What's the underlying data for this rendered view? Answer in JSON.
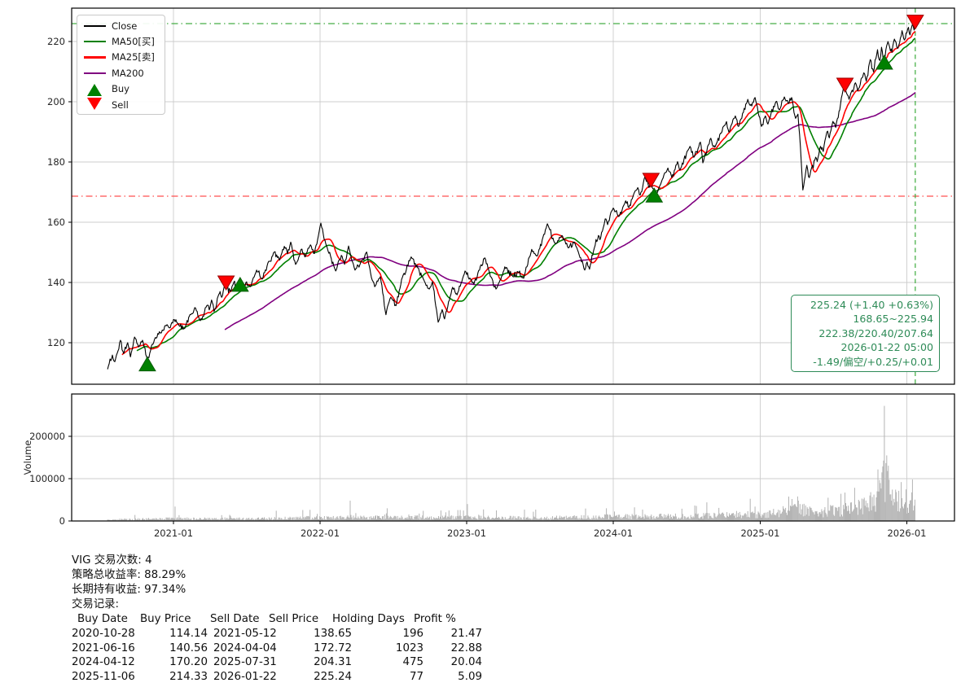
{
  "colors": {
    "close": "#000000",
    "ma50": "#008000",
    "ma25": "#ff0000",
    "ma200": "#800080",
    "buy": "#008000",
    "buy_edge": "#0a5d0a",
    "sell": "#ff0000",
    "sell_edge": "#990000",
    "hline_high": "#46ad46",
    "hline_low": "#ff5050",
    "vline": "#3cab3c",
    "grid": "#cccccc",
    "frame": "#000000",
    "volume_bar": "#b4b4b4",
    "infobox": "#2e8b57",
    "tick_text": "#262626"
  },
  "legend": {
    "items": [
      {
        "label": "Close",
        "swatch": "line",
        "color_key": "close"
      },
      {
        "label": "MA50[买]",
        "swatch": "line",
        "color_key": "ma50"
      },
      {
        "label": "MA25[卖]",
        "swatch": "line",
        "color_key": "ma25"
      },
      {
        "label": "MA200",
        "swatch": "line",
        "color_key": "ma200"
      },
      {
        "label": "Buy",
        "swatch": "triangle-up",
        "color_key": "buy"
      },
      {
        "label": "Sell",
        "swatch": "triangle-down",
        "color_key": "sell"
      }
    ]
  },
  "info_box": {
    "lines": [
      "225.24 (+1.40 +0.63%)",
      "168.65~225.94",
      "222.38/220.40/207.64",
      "2026-01-22 05:00",
      "-1.49/偏空/+0.25/+0.01"
    ]
  },
  "stats": {
    "line1": "VIG 交易次数: 4",
    "line2": "策略总收益率: 88.29%",
    "line3": "长期持有收益: 97.34%",
    "line4": "交易记录:",
    "table": {
      "headers": [
        "Buy Date",
        "Buy Price",
        "Sell Date",
        "Sell Price",
        "Holding Days",
        "Profit %"
      ],
      "rows": [
        [
          "2020-10-28",
          "114.14",
          "2021-05-12",
          "138.65",
          "196",
          "21.47"
        ],
        [
          "2021-06-16",
          "140.56",
          "2024-04-04",
          "172.72",
          "1023",
          "22.88"
        ],
        [
          "2024-04-12",
          "170.20",
          "2025-07-31",
          "204.31",
          "475",
          "20.04"
        ],
        [
          "2025-11-06",
          "214.33",
          "2026-01-22",
          "225.24",
          "77",
          "5.09"
        ]
      ]
    }
  },
  "chart_data": {
    "type": "line",
    "title": "",
    "symbol": "VIG",
    "price_ticks": [
      120,
      140,
      160,
      180,
      200,
      220
    ],
    "price_ylim": [
      106,
      231.5
    ],
    "x_ticks": [
      [
        "2021-01-01",
        "2021-01"
      ],
      [
        "2022-01-01",
        "2022-01"
      ],
      [
        "2023-01-01",
        "2023-01"
      ],
      [
        "2024-01-01",
        "2024-01"
      ],
      [
        "2025-01-01",
        "2025-01"
      ],
      [
        "2026-01-01",
        "2026-01"
      ]
    ],
    "volume_label": "Volume",
    "volume_ticks": [
      [
        0,
        "0"
      ],
      [
        100000,
        "100000"
      ],
      [
        200000,
        "200000"
      ]
    ],
    "volume_ylim": [
      0,
      300000
    ],
    "hlines": [
      {
        "value": 225.94,
        "color_key": "hline_high",
        "dash": "8 4 1.5 4"
      },
      {
        "value": 168.65,
        "color_key": "hline_low",
        "dash": "8 4 1.5 4"
      }
    ],
    "vlines": [
      {
        "date": "2026-01-22",
        "color_key": "vline",
        "dash": "5.5 4"
      }
    ],
    "ma_lines": [
      {
        "name": "MA200",
        "window_days": 292,
        "color_key": "ma200"
      },
      {
        "name": "MA50",
        "window_days": 72,
        "color_key": "ma50"
      },
      {
        "name": "MA25",
        "window_days": 36,
        "color_key": "ma25"
      }
    ],
    "markers": [
      {
        "type": "buy",
        "date": "2020-10-28",
        "price": 114.14
      },
      {
        "type": "sell",
        "date": "2021-05-12",
        "price": 138.65
      },
      {
        "type": "buy",
        "date": "2021-06-16",
        "price": 140.56
      },
      {
        "type": "sell",
        "date": "2024-04-04",
        "price": 172.72
      },
      {
        "type": "buy",
        "date": "2024-04-12",
        "price": 170.2
      },
      {
        "type": "sell",
        "date": "2025-07-31",
        "price": 204.31
      },
      {
        "type": "buy",
        "date": "2025-11-06",
        "price": 214.33
      },
      {
        "type": "sell",
        "date": "2026-01-22",
        "price": 225.24
      }
    ],
    "close": [
      [
        "2020-07-21",
        111.2
      ],
      [
        "2020-08-02",
        115.9
      ],
      [
        "2020-08-08",
        113.7
      ],
      [
        "2020-08-22",
        120.8
      ],
      [
        "2020-08-30",
        116.4
      ],
      [
        "2020-09-09",
        120.0
      ],
      [
        "2020-09-16",
        115.3
      ],
      [
        "2020-09-26",
        121.9
      ],
      [
        "2020-10-06",
        118.6
      ],
      [
        "2020-10-16",
        120.8
      ],
      [
        "2020-10-28",
        114.1
      ],
      [
        "2020-11-09",
        119.5
      ],
      [
        "2020-11-19",
        121.5
      ],
      [
        "2020-11-28",
        123.5
      ],
      [
        "2020-12-06",
        124.1
      ],
      [
        "2020-12-16",
        126.0
      ],
      [
        "2020-12-24",
        125.0
      ],
      [
        "2021-01-01",
        127.7
      ],
      [
        "2021-01-13",
        126.2
      ],
      [
        "2021-01-29",
        124.7
      ],
      [
        "2021-02-11",
        129.3
      ],
      [
        "2021-02-25",
        131.5
      ],
      [
        "2021-03-05",
        128.4
      ],
      [
        "2021-03-13",
        127.7
      ],
      [
        "2021-03-25",
        132.3
      ],
      [
        "2021-03-31",
        130.9
      ],
      [
        "2021-04-06",
        134.2
      ],
      [
        "2021-04-12",
        130.4
      ],
      [
        "2021-04-27",
        137.0
      ],
      [
        "2021-05-03",
        135.6
      ],
      [
        "2021-05-11",
        140.9
      ],
      [
        "2021-05-12",
        138.65
      ],
      [
        "2021-05-23",
        137.0
      ],
      [
        "2021-05-31",
        140.0
      ],
      [
        "2021-06-06",
        138.6
      ],
      [
        "2021-06-16",
        140.56
      ],
      [
        "2021-06-22",
        137.6
      ],
      [
        "2021-06-30",
        139.9
      ],
      [
        "2021-07-11",
        138.6
      ],
      [
        "2021-07-27",
        144.1
      ],
      [
        "2021-08-10",
        141.1
      ],
      [
        "2021-08-26",
        147.0
      ],
      [
        "2021-09-09",
        150.1
      ],
      [
        "2021-09-22",
        147.4
      ],
      [
        "2021-10-04",
        152.0
      ],
      [
        "2021-10-12",
        149.5
      ],
      [
        "2021-10-20",
        153.4
      ],
      [
        "2021-11-01",
        146.0
      ],
      [
        "2021-11-15",
        151.0
      ],
      [
        "2021-11-24",
        148.5
      ],
      [
        "2021-12-08",
        152.5
      ],
      [
        "2021-12-18",
        149.6
      ],
      [
        "2022-01-03",
        159.7
      ],
      [
        "2022-01-15",
        153.0
      ],
      [
        "2022-02-09",
        143.8
      ],
      [
        "2022-02-23",
        149.0
      ],
      [
        "2022-03-03",
        146.0
      ],
      [
        "2022-03-13",
        152.1
      ],
      [
        "2022-03-29",
        144.1
      ],
      [
        "2022-04-12",
        146.5
      ],
      [
        "2022-04-27",
        150.1
      ],
      [
        "2022-05-07",
        143.0
      ],
      [
        "2022-05-17",
        138.6
      ],
      [
        "2022-05-31",
        141.9
      ],
      [
        "2022-06-14",
        129.3
      ],
      [
        "2022-06-26",
        135.1
      ],
      [
        "2022-07-09",
        132.3
      ],
      [
        "2022-07-23",
        141.0
      ],
      [
        "2022-08-16",
        148.5
      ],
      [
        "2022-09-16",
        141.0
      ],
      [
        "2022-09-30",
        137.8
      ],
      [
        "2022-10-08",
        140.3
      ],
      [
        "2022-10-22",
        126.8
      ],
      [
        "2022-11-01",
        131.0
      ],
      [
        "2022-11-07",
        127.9
      ],
      [
        "2022-11-27",
        138.4
      ],
      [
        "2022-12-08",
        135.9
      ],
      [
        "2022-12-28",
        143.8
      ],
      [
        "2023-01-19",
        139.5
      ],
      [
        "2023-01-31",
        144.0
      ],
      [
        "2023-02-15",
        148.2
      ],
      [
        "2023-03-01",
        142.0
      ],
      [
        "2023-03-15",
        137.8
      ],
      [
        "2023-03-27",
        141.0
      ],
      [
        "2023-04-06",
        145.2
      ],
      [
        "2023-04-27",
        141.9
      ],
      [
        "2023-05-09",
        143.5
      ],
      [
        "2023-05-23",
        141.4
      ],
      [
        "2023-06-12",
        151.0
      ],
      [
        "2023-06-26",
        148.8
      ],
      [
        "2023-07-21",
        159.5
      ],
      [
        "2023-08-10",
        152.9
      ],
      [
        "2023-08-26",
        155.6
      ],
      [
        "2023-09-11",
        151.5
      ],
      [
        "2023-09-26",
        153.4
      ],
      [
        "2023-10-22",
        144.1
      ],
      [
        "2023-10-28",
        146.8
      ],
      [
        "2023-11-03",
        144.4
      ],
      [
        "2023-11-15",
        151.5
      ],
      [
        "2023-11-25",
        155.6
      ],
      [
        "2023-11-29",
        154.2
      ],
      [
        "2023-12-12",
        161.1
      ],
      [
        "2023-12-18",
        159.2
      ],
      [
        "2024-01-01",
        164.7
      ],
      [
        "2024-01-15",
        161.9
      ],
      [
        "2024-02-01",
        167.1
      ],
      [
        "2024-02-09",
        164.9
      ],
      [
        "2024-03-02",
        171.5
      ],
      [
        "2024-03-08",
        169.0
      ],
      [
        "2024-03-20",
        175.1
      ],
      [
        "2024-03-30",
        171.5
      ],
      [
        "2024-04-04",
        172.72
      ],
      [
        "2024-04-12",
        170.2
      ],
      [
        "2024-04-15",
        167.9
      ],
      [
        "2024-04-26",
        172.1
      ],
      [
        "2024-05-06",
        175.6
      ],
      [
        "2024-05-16",
        178.0
      ],
      [
        "2024-05-26",
        174.8
      ],
      [
        "2024-06-09",
        180.1
      ],
      [
        "2024-06-15",
        177.3
      ],
      [
        "2024-07-10",
        185.2
      ],
      [
        "2024-07-20",
        181.6
      ],
      [
        "2024-08-05",
        186.6
      ],
      [
        "2024-08-11",
        179.7
      ],
      [
        "2024-08-31",
        187.9
      ],
      [
        "2024-09-10",
        184.9
      ],
      [
        "2024-10-09",
        193.4
      ],
      [
        "2024-10-15",
        189.9
      ],
      [
        "2024-10-31",
        195.3
      ],
      [
        "2024-11-08",
        191.8
      ],
      [
        "2024-12-01",
        200.8
      ],
      [
        "2024-12-11",
        198.6
      ],
      [
        "2024-12-19",
        201.4
      ],
      [
        "2025-01-04",
        191.8
      ],
      [
        "2025-01-14",
        195.3
      ],
      [
        "2025-01-20",
        192.6
      ],
      [
        "2025-02-09",
        200.0
      ],
      [
        "2025-02-18",
        197.3
      ],
      [
        "2025-03-02",
        201.6
      ],
      [
        "2025-03-12",
        199.4
      ],
      [
        "2025-03-20",
        201.4
      ],
      [
        "2025-03-30",
        194.5
      ],
      [
        "2025-04-05",
        195.9
      ],
      [
        "2025-04-11",
        185.2
      ],
      [
        "2025-04-17",
        170.7
      ],
      [
        "2025-04-27",
        178.9
      ],
      [
        "2025-05-03",
        174.8
      ],
      [
        "2025-05-19",
        181.6
      ],
      [
        "2025-05-23",
        180.2
      ],
      [
        "2025-05-31",
        185.2
      ],
      [
        "2025-06-07",
        183.5
      ],
      [
        "2025-06-16",
        190.0
      ],
      [
        "2025-06-22",
        188.0
      ],
      [
        "2025-07-01",
        193.5
      ],
      [
        "2025-07-08",
        191.5
      ],
      [
        "2025-07-27",
        204.4
      ],
      [
        "2025-07-31",
        204.31
      ],
      [
        "2025-08-10",
        200.8
      ],
      [
        "2025-08-26",
        206.3
      ],
      [
        "2025-09-01",
        203.6
      ],
      [
        "2025-09-16",
        209.6
      ],
      [
        "2025-09-22",
        206.8
      ],
      [
        "2025-10-02",
        214.0
      ],
      [
        "2025-10-10",
        209.9
      ],
      [
        "2025-10-20",
        217.3
      ],
      [
        "2025-10-26",
        213.7
      ],
      [
        "2025-10-30",
        218.1
      ],
      [
        "2025-11-05",
        212.6
      ],
      [
        "2025-11-06",
        214.33
      ],
      [
        "2025-11-15",
        220.0
      ],
      [
        "2025-11-25",
        216.4
      ],
      [
        "2025-12-01",
        220.8
      ],
      [
        "2025-12-10",
        217.8
      ],
      [
        "2025-12-20",
        223.6
      ],
      [
        "2025-12-26",
        220.5
      ],
      [
        "2026-01-05",
        224.7
      ],
      [
        "2026-01-09",
        222.2
      ],
      [
        "2026-01-15",
        225.8
      ],
      [
        "2026-01-19",
        223.8
      ],
      [
        "2026-01-22",
        225.24
      ]
    ],
    "volume_profile": [
      [
        "2020-07-21",
        3000
      ],
      [
        "2021-01-01",
        6000
      ],
      [
        "2021-07-01",
        5500
      ],
      [
        "2022-01-01",
        8500
      ],
      [
        "2022-07-01",
        9000
      ],
      [
        "2023-01-01",
        9000
      ],
      [
        "2023-07-01",
        7500
      ],
      [
        "2024-01-01",
        11000
      ],
      [
        "2024-07-01",
        12000
      ],
      [
        "2025-01-01",
        16000
      ],
      [
        "2025-04-15",
        30000
      ],
      [
        "2025-06-01",
        22000
      ],
      [
        "2025-08-01",
        30000
      ],
      [
        "2025-09-15",
        40000
      ],
      [
        "2025-10-20",
        60000
      ],
      [
        "2025-11-07",
        110000
      ],
      [
        "2025-11-25",
        70000
      ],
      [
        "2025-12-15",
        52000
      ],
      [
        "2026-01-22",
        48000
      ]
    ],
    "volume_spikes": [
      [
        "2021-01-05",
        34000
      ],
      [
        "2021-11-19",
        26000
      ],
      [
        "2022-03-18",
        48000
      ],
      [
        "2022-06-17",
        30000
      ],
      [
        "2022-09-16",
        24000
      ],
      [
        "2022-12-16",
        26000
      ],
      [
        "2023-01-03",
        40000
      ],
      [
        "2023-03-17",
        25000
      ],
      [
        "2023-06-16",
        22000
      ],
      [
        "2023-12-15",
        30000
      ],
      [
        "2024-03-15",
        27000
      ],
      [
        "2024-06-21",
        29000
      ],
      [
        "2024-09-20",
        31000
      ],
      [
        "2024-12-20",
        34000
      ],
      [
        "2025-03-21",
        52000
      ],
      [
        "2025-04-07",
        48000
      ],
      [
        "2025-11-06",
        272000
      ],
      [
        "2025-11-12",
        155000
      ],
      [
        "2025-11-14",
        118000
      ],
      [
        "2025-12-19",
        92000
      ],
      [
        "2026-01-16",
        98000
      ]
    ]
  }
}
